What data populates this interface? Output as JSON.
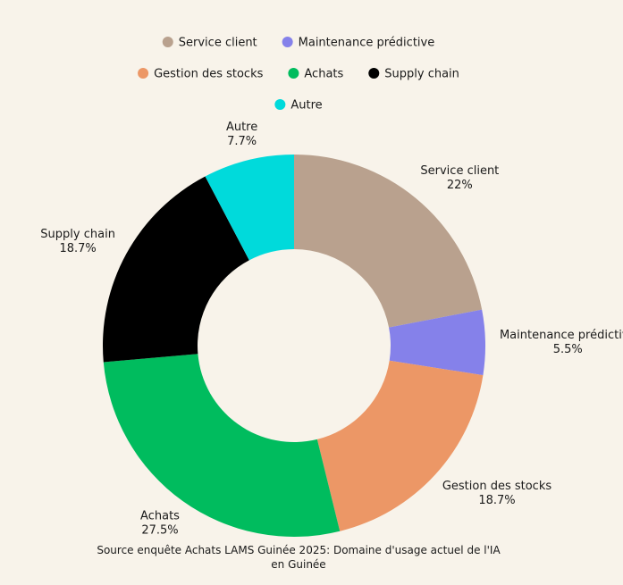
{
  "chart_data": {
    "type": "pie",
    "donut": true,
    "title": "",
    "source": "Source enquête Achats LAMS Guinée 2025: Domaine d'usage actuel de l'IA en Guinée",
    "source_lines": [
      "Source enquête Achats LAMS Guinée 2025: Domaine d'usage actuel de l'IA",
      "en Guinée"
    ],
    "legend_position": "top",
    "slices": [
      {
        "name": "Service client",
        "value": 22,
        "label": "22%",
        "color": "#b9a18e"
      },
      {
        "name": "Maintenance prédictive",
        "value": 5.5,
        "label": "5.5%",
        "color": "#8581ea"
      },
      {
        "name": "Gestion des stocks",
        "value": 18.7,
        "label": "18.7%",
        "color": "#ec9766"
      },
      {
        "name": "Achats",
        "value": 27.5,
        "label": "27.5%",
        "color": "#00bc5e"
      },
      {
        "name": "Supply chain",
        "value": 18.7,
        "label": "18.7%",
        "color": "#000000"
      },
      {
        "name": "Autre",
        "value": 7.7,
        "label": "7.7%",
        "color": "#00dadb"
      }
    ]
  }
}
